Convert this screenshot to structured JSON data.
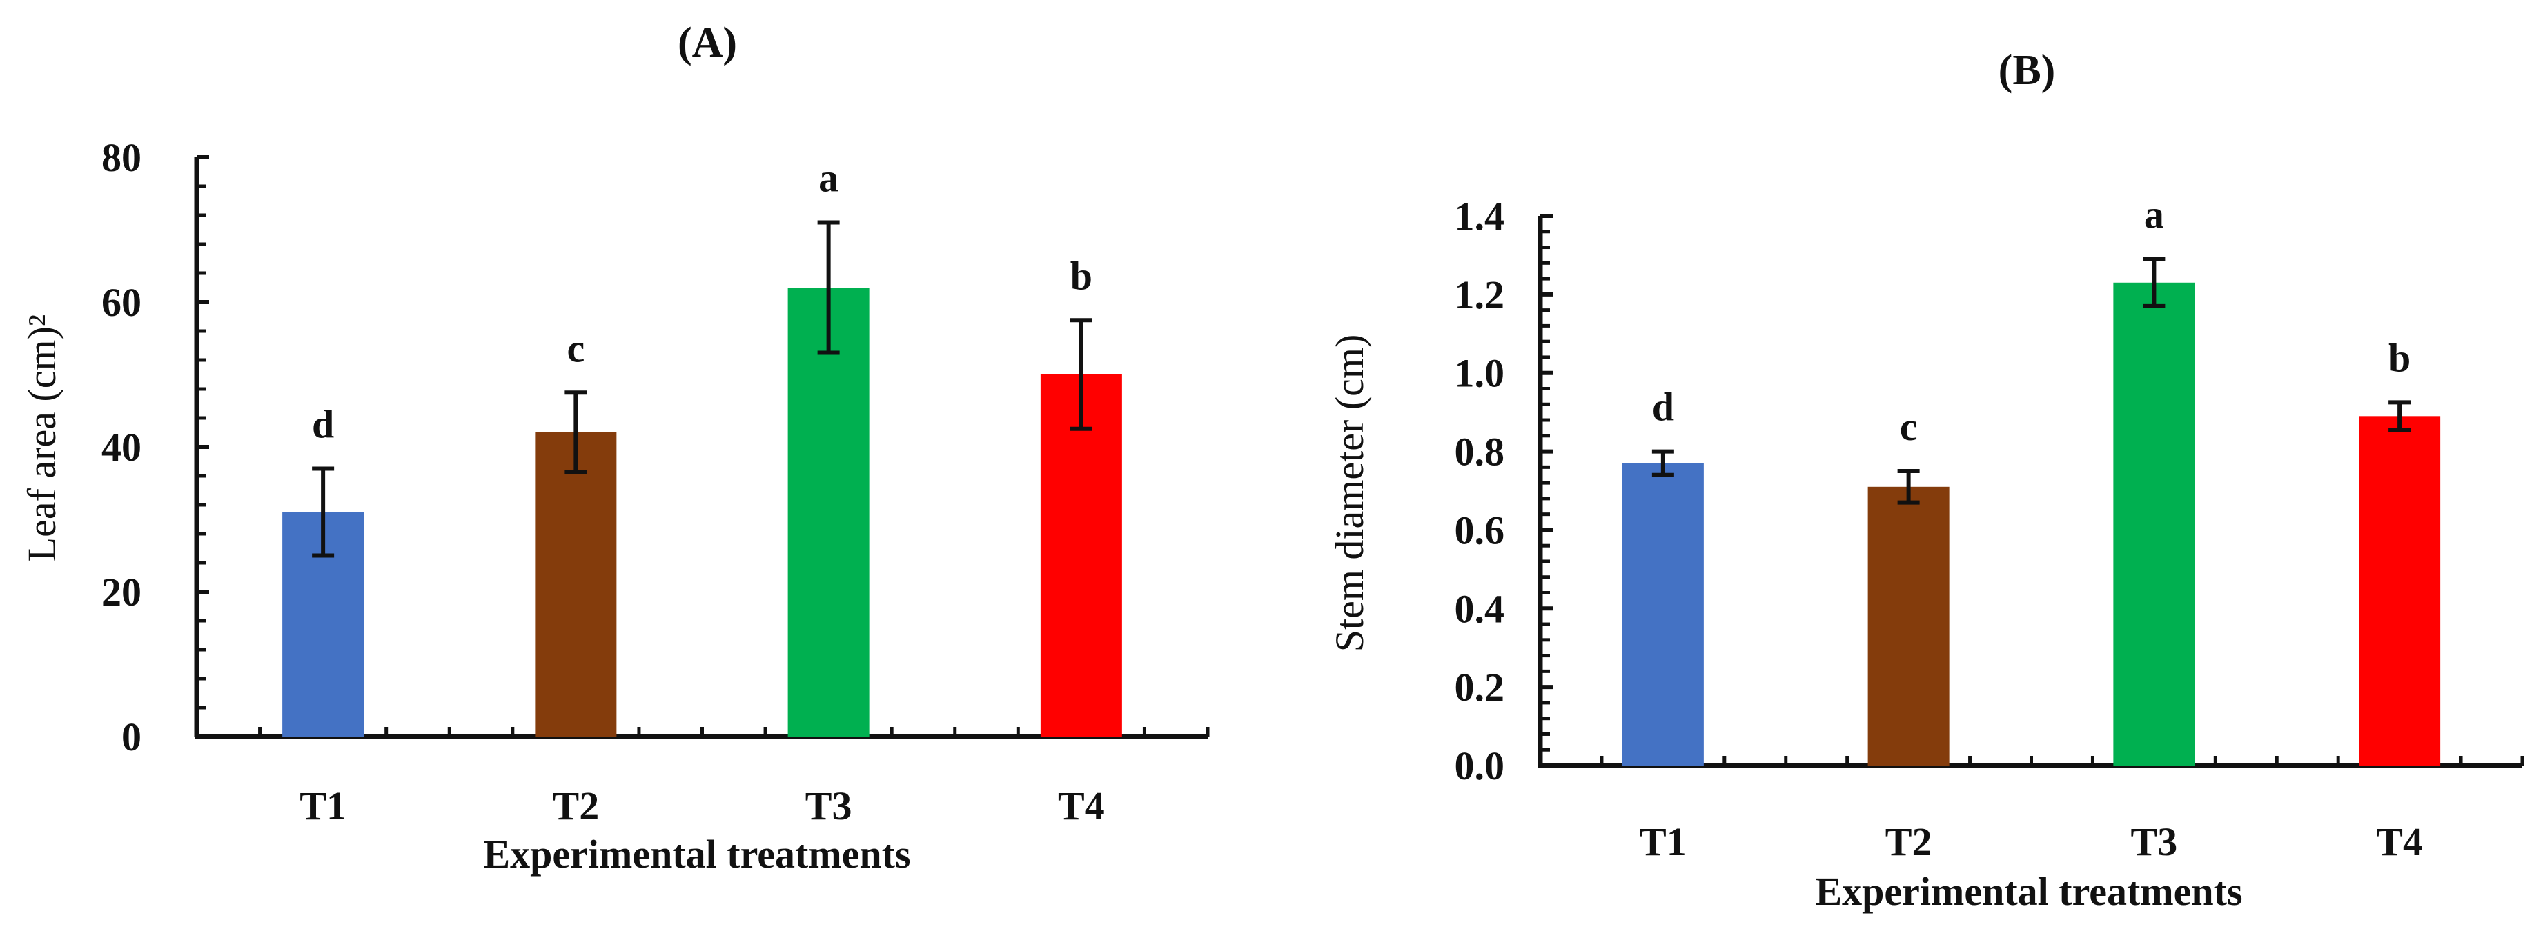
{
  "chart_data": [
    {
      "type": "bar",
      "panel_label": "(A)",
      "title": "",
      "xlabel": "Experimental treatments",
      "ylabel": "Leaf area (cm)²",
      "ylim": [
        0,
        80
      ],
      "ytick_step": 20,
      "ytick_labels": [
        "0",
        "20",
        "40",
        "60",
        "80"
      ],
      "categories": [
        "T1",
        "T2",
        "T3",
        "T4"
      ],
      "values": [
        31,
        42,
        62,
        50
      ],
      "errors": [
        6,
        5.5,
        9,
        7.5
      ],
      "significance": [
        "d",
        "c",
        "a",
        "b"
      ],
      "colors": [
        "#4472c4",
        "#843c0c",
        "#00b050",
        "#ff0000"
      ],
      "grid": false,
      "legend": "none"
    },
    {
      "type": "bar",
      "panel_label": "(B)",
      "title": "",
      "xlabel": "Experimental treatments",
      "ylabel": "Stem diameter (cm)",
      "ylim": [
        0,
        1.4
      ],
      "ytick_step": 0.2,
      "ytick_labels": [
        "0.0",
        "0.2",
        "0.4",
        "0.6",
        "0.8",
        "1.0",
        "1.2",
        "1.4"
      ],
      "categories": [
        "T1",
        "T2",
        "T3",
        "T4"
      ],
      "values": [
        0.77,
        0.71,
        1.23,
        0.89
      ],
      "errors": [
        0.03,
        0.04,
        0.06,
        0.035
      ],
      "significance": [
        "d",
        "c",
        "a",
        "b"
      ],
      "colors": [
        "#4472c4",
        "#843c0c",
        "#00b050",
        "#ff0000"
      ],
      "grid": false,
      "legend": "none"
    }
  ]
}
